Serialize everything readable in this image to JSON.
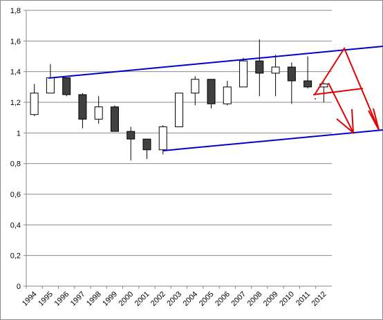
{
  "chart_data": {
    "type": "candlestick",
    "categories": [
      "1994",
      "1995",
      "1996",
      "1997",
      "1998",
      "1999",
      "2000",
      "2001",
      "2002",
      "2003",
      "2004",
      "2005",
      "2006",
      "2007",
      "2008",
      "2009",
      "2010",
      "2011",
      "2012"
    ],
    "open": [
      1.12,
      1.26,
      1.36,
      1.25,
      1.09,
      1.17,
      1.01,
      0.96,
      0.89,
      1.04,
      1.26,
      1.35,
      1.19,
      1.3,
      1.47,
      1.39,
      1.43,
      1.34,
      1.3
    ],
    "high": [
      1.32,
      1.45,
      1.36,
      1.26,
      1.24,
      1.18,
      1.04,
      0.96,
      1.05,
      1.26,
      1.37,
      1.35,
      1.34,
      1.49,
      1.61,
      1.51,
      1.46,
      1.5,
      1.33
    ],
    "low": [
      1.11,
      1.26,
      1.24,
      1.03,
      1.06,
      1.01,
      0.82,
      0.83,
      0.86,
      1.04,
      1.18,
      1.16,
      1.18,
      1.3,
      1.24,
      1.24,
      1.19,
      1.29,
      1.2
    ],
    "close": [
      1.26,
      1.36,
      1.25,
      1.09,
      1.17,
      1.01,
      0.96,
      0.89,
      1.04,
      1.26,
      1.35,
      1.19,
      1.3,
      1.47,
      1.39,
      1.43,
      1.34,
      1.3,
      1.32
    ],
    "up_color": "#ffffff",
    "down_color": "#404040",
    "ylim": [
      0,
      1.8
    ],
    "yticks": [
      0,
      {
        "value": 0.2,
        "label": "0,2"
      },
      {
        "value": 0.4,
        "label": "0,4"
      },
      {
        "value": 0.6,
        "label": "0,6"
      },
      {
        "value": 0.8,
        "label": "0,8"
      },
      1,
      {
        "value": 1.2,
        "label": "1,2"
      },
      {
        "value": 1.4,
        "label": "1,4"
      },
      {
        "value": 1.6,
        "label": "1,6"
      },
      {
        "value": 1.8,
        "label": "1,8"
      }
    ],
    "grid": true
  }
}
